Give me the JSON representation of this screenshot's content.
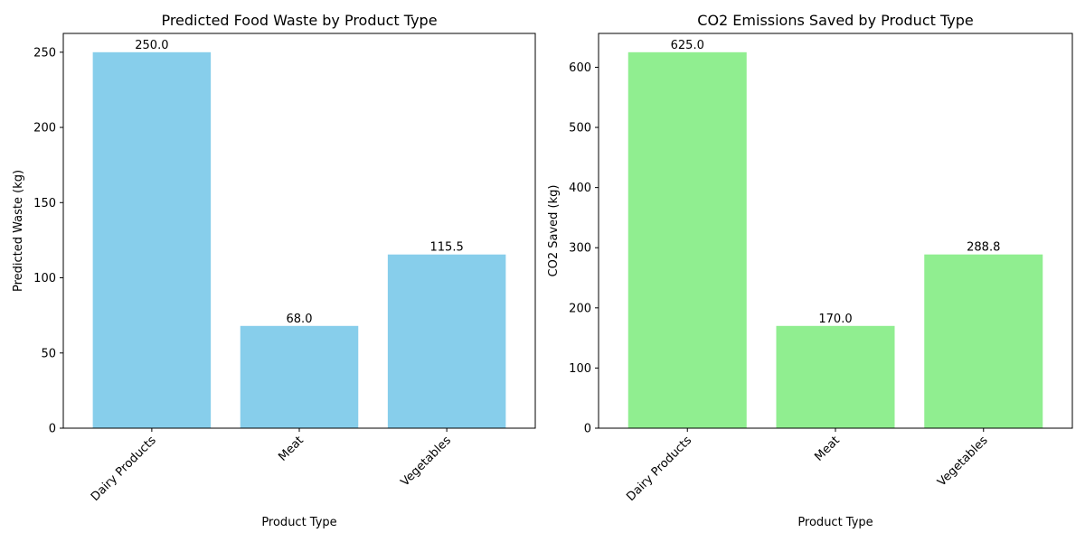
{
  "chart_data": [
    {
      "type": "bar",
      "title": "Predicted Food Waste by Product Type",
      "xlabel": "Product Type",
      "ylabel": "Predicted Waste (kg)",
      "categories": [
        "Dairy Products",
        "Meat",
        "Vegetables"
      ],
      "values": [
        250.0,
        68.0,
        115.5
      ],
      "value_labels": [
        "250.0",
        "68.0",
        "115.5"
      ],
      "ylim": [
        0,
        262.5
      ],
      "yticks": [
        0,
        50,
        100,
        150,
        200,
        250
      ],
      "color": "#87CEEB",
      "grid": false
    },
    {
      "type": "bar",
      "title": "CO2 Emissions Saved by Product Type",
      "xlabel": "Product Type",
      "ylabel": "CO2 Saved (kg)",
      "categories": [
        "Dairy Products",
        "Meat",
        "Vegetables"
      ],
      "values": [
        625.0,
        170.0,
        288.8
      ],
      "value_labels": [
        "625.0",
        "170.0",
        "288.8"
      ],
      "ylim": [
        0,
        656.25
      ],
      "yticks": [
        0,
        100,
        200,
        300,
        400,
        500,
        600
      ],
      "color": "#90EE90",
      "grid": false
    }
  ]
}
